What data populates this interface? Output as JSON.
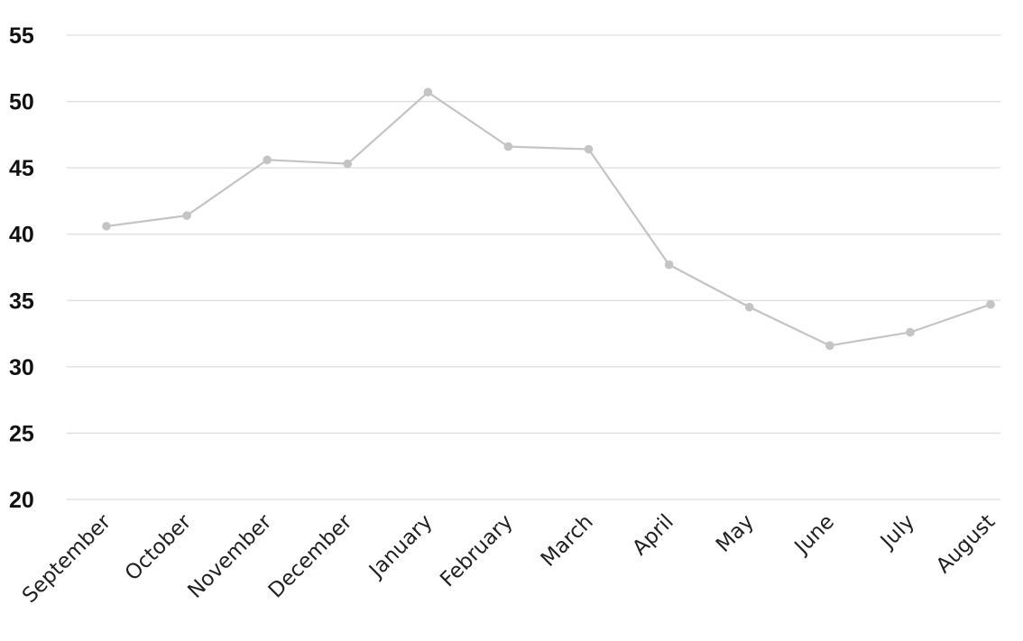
{
  "chart_data": {
    "type": "line",
    "title": "",
    "xlabel": "",
    "ylabel": "",
    "categories": [
      "September",
      "October",
      "November",
      "December",
      "January",
      "February",
      "March",
      "April",
      "May",
      "June",
      "July",
      "August"
    ],
    "series": [
      {
        "values": [
          40.6,
          41.4,
          45.6,
          45.3,
          50.7,
          46.6,
          46.4,
          37.7,
          34.5,
          31.6,
          32.6,
          34.7
        ],
        "color": "#c4c4c4"
      }
    ],
    "yticks": [
      20,
      25,
      30,
      35,
      40,
      45,
      50,
      55
    ],
    "ylim": [
      20,
      55
    ],
    "grid": true,
    "legend": "none"
  }
}
